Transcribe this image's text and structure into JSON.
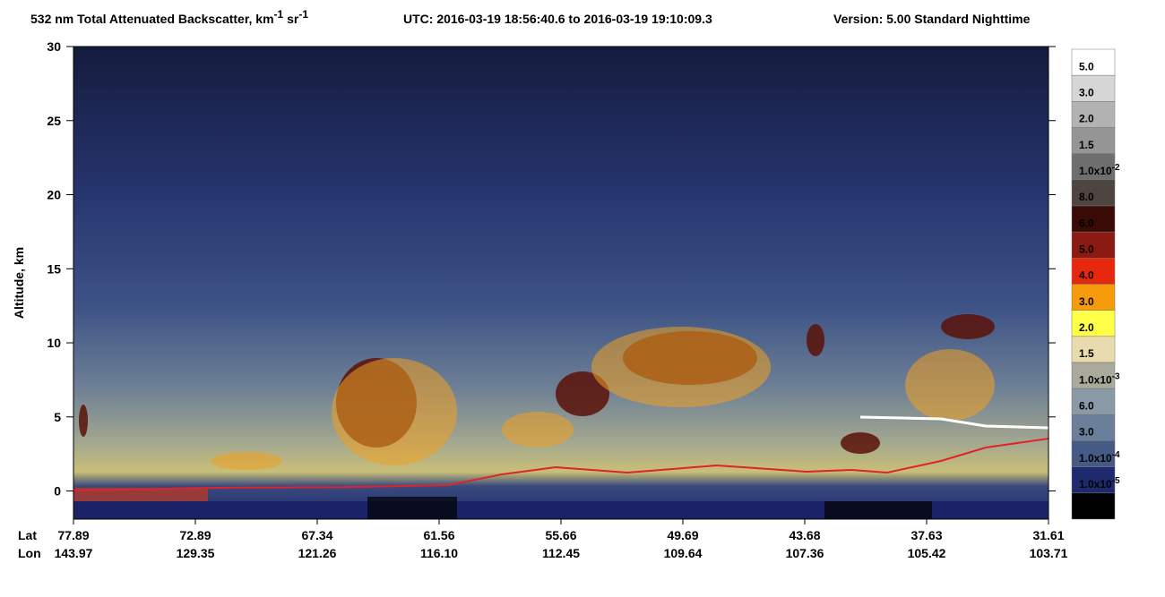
{
  "chart_data": {
    "type": "curtain",
    "title": {
      "main": "532 nm Total Attenuated Backscatter, km",
      "sup1": "-1",
      "mid": " sr",
      "sup2": "-1",
      "utc": "UTC:  2016-03-19 18:56:40.6  to  2016-03-19 19:10:09.3",
      "version": "Version: 5.00  Standard  Nighttime"
    },
    "y_label": "Altitude, km",
    "ylim": [
      -1.9,
      30
    ],
    "yticks": [
      0,
      5,
      10,
      15,
      20,
      25,
      30
    ],
    "x_row_labels": [
      "Lat",
      "Lon"
    ],
    "lat": [
      "77.89",
      "72.89",
      "67.34",
      "61.56",
      "55.66",
      "49.69",
      "43.68",
      "37.63",
      "31.61"
    ],
    "lon": [
      "143.97",
      "129.35",
      "121.26",
      "116.10",
      "112.45",
      "109.64",
      "107.36",
      "105.42",
      "103.71"
    ],
    "colorbar": {
      "colors": [
        "#ffffff",
        "#d6d6d6",
        "#b2b2b2",
        "#959595",
        "#6e6e6e",
        "#4e4440",
        "#3a0a06",
        "#8a1a12",
        "#e8280c",
        "#f59b0c",
        "#ffff48",
        "#e9dbae",
        "#a9a99c",
        "#8a99a6",
        "#6a7f99",
        "#455a84",
        "#1f2a6e",
        "#000000"
      ],
      "labels": [
        {
          "text": "5.0"
        },
        {
          "text": "3.0"
        },
        {
          "text": "2.0"
        },
        {
          "text": "1.5"
        },
        {
          "text": "1.0x10",
          "sup": "-2"
        },
        {
          "text": "8.0"
        },
        {
          "text": "6.0"
        },
        {
          "text": "5.0"
        },
        {
          "text": "4.0"
        },
        {
          "text": "3.0"
        },
        {
          "text": "2.0"
        },
        {
          "text": "1.5"
        },
        {
          "text": "1.0x10",
          "sup": "-3"
        },
        {
          "text": "6.0"
        },
        {
          "text": "3.0"
        },
        {
          "text": "1.0x10",
          "sup": "-4"
        },
        {
          "text": "1.0x10",
          "sup": "-5"
        }
      ]
    }
  }
}
